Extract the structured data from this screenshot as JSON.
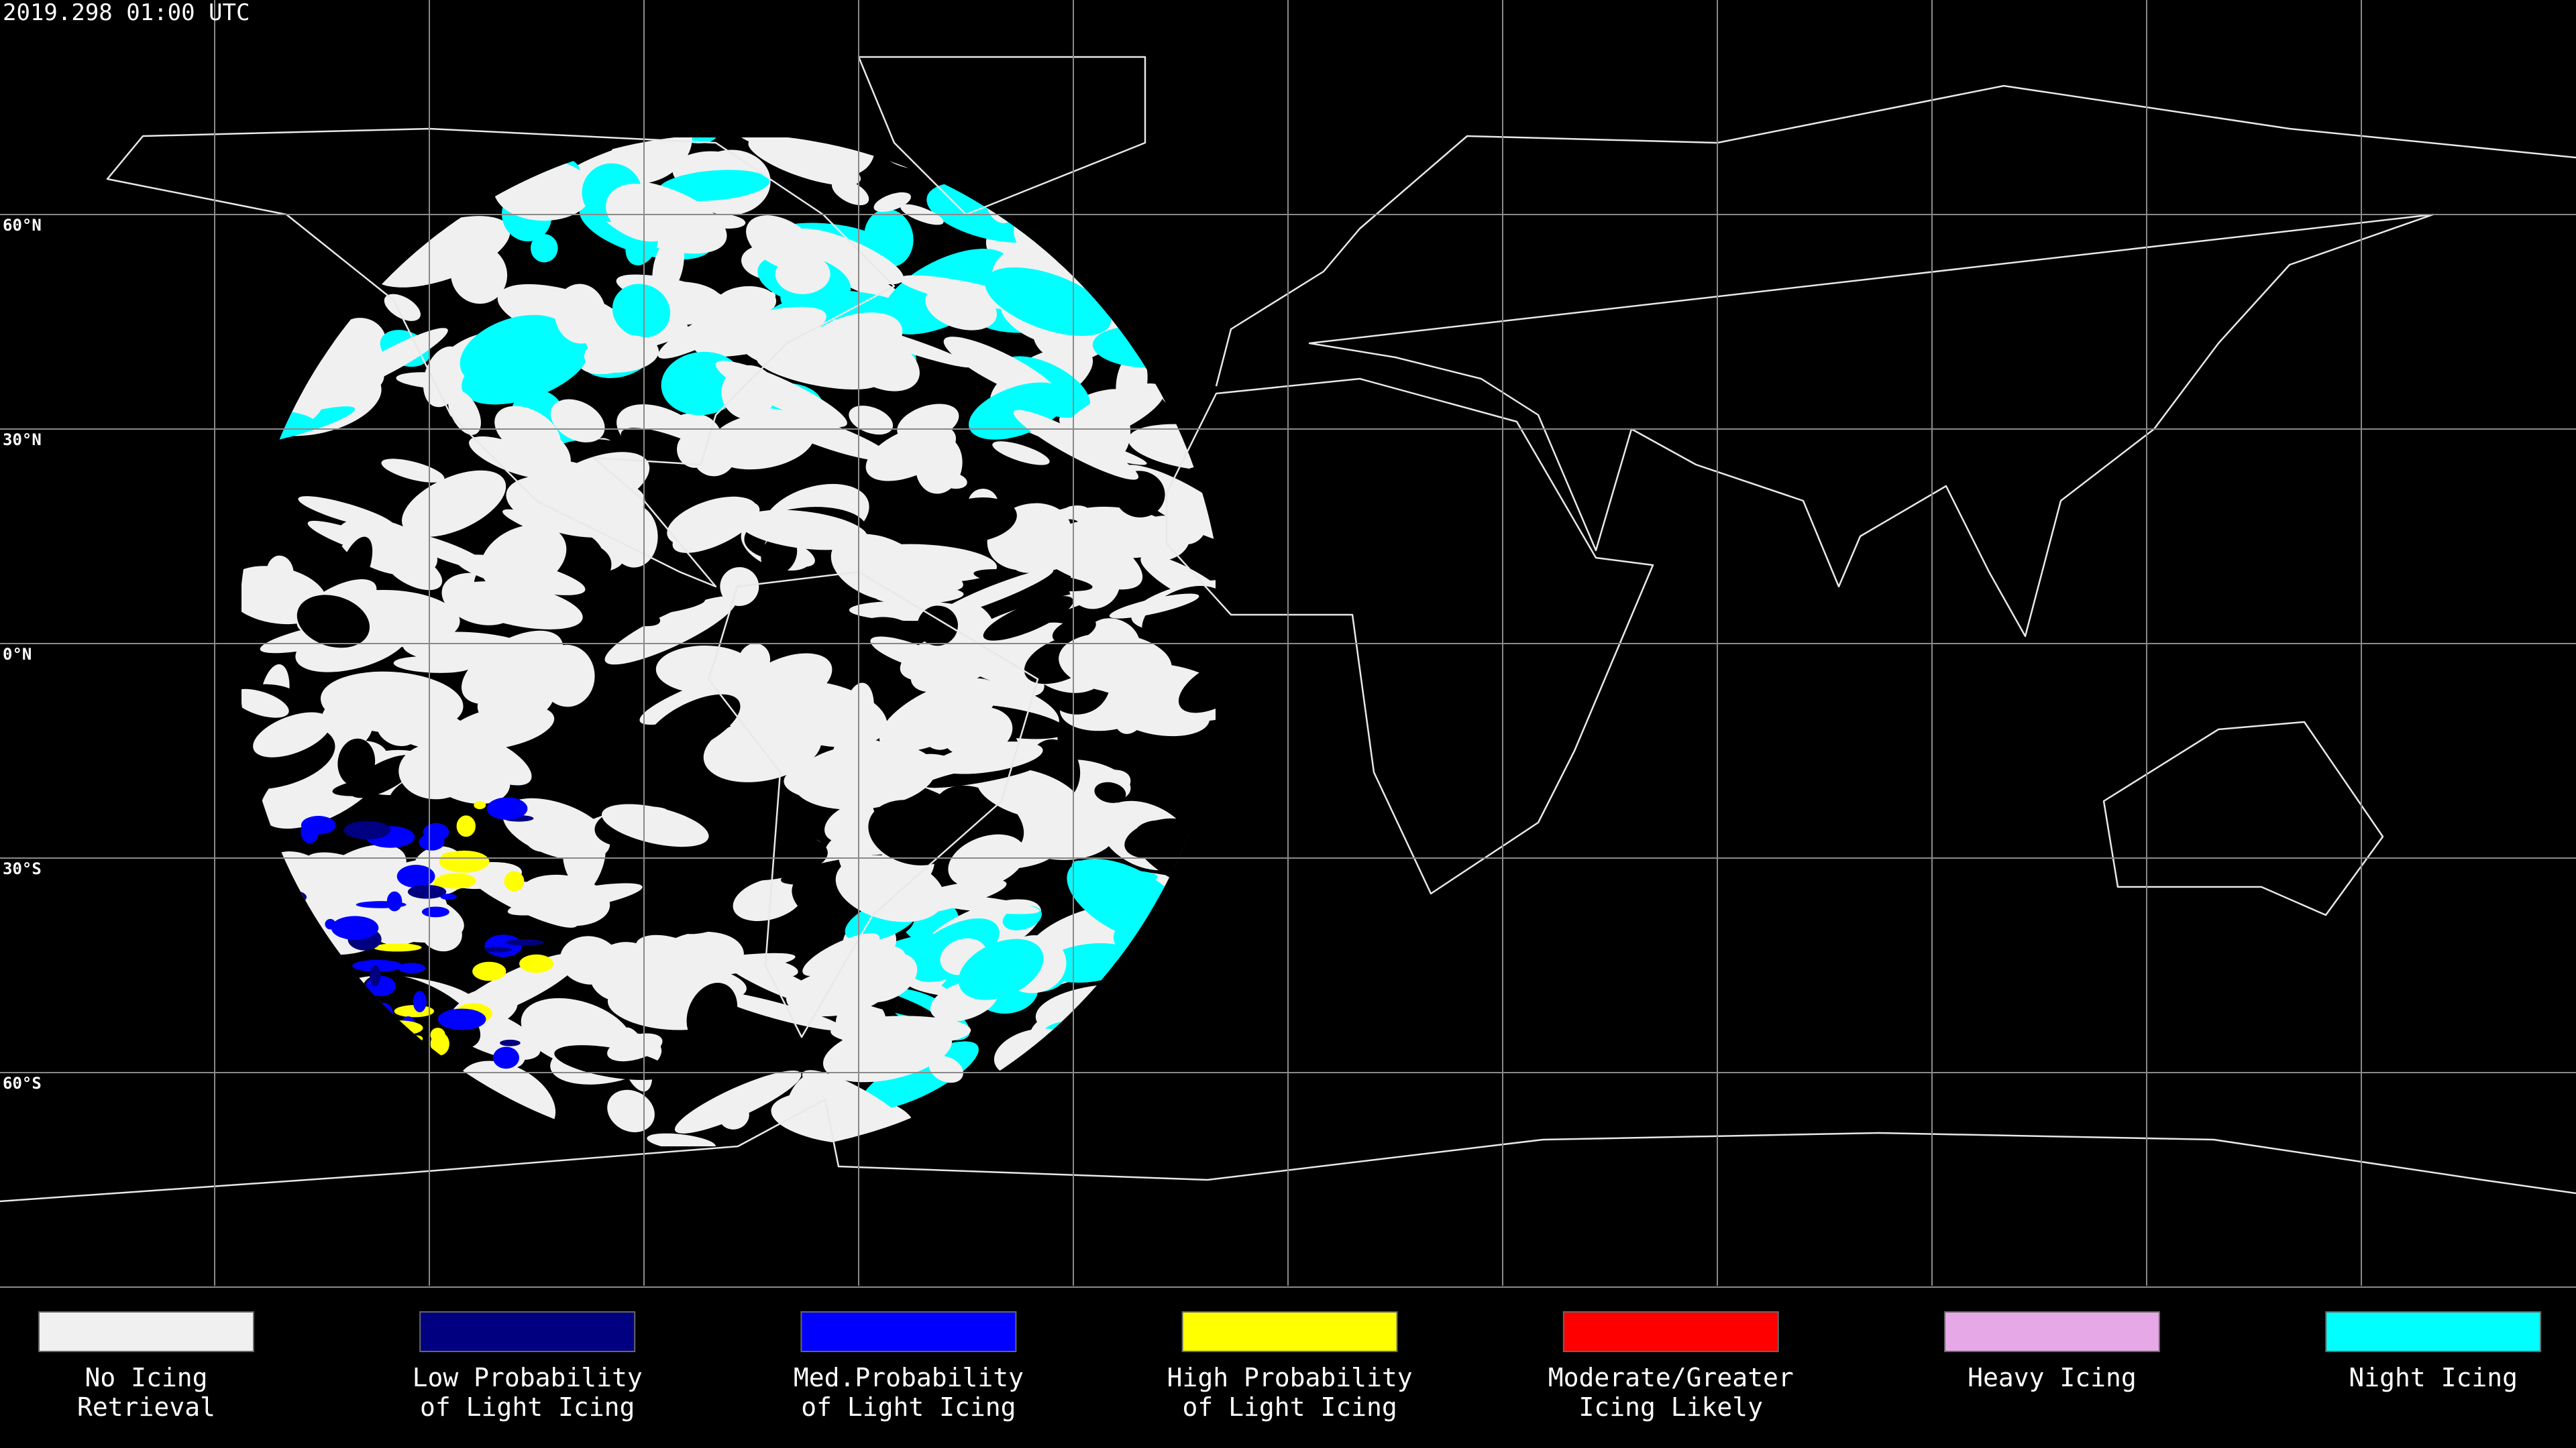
{
  "header": {
    "timestamp": "2019.298 01:00 UTC"
  },
  "map": {
    "latitude_labels": [
      "60°N",
      "30°N",
      "0°N",
      "30°S",
      "60°S"
    ]
  },
  "legend": {
    "items": [
      {
        "label": [
          "No Icing",
          "Retrieval"
        ],
        "color": "#f0f0f0"
      },
      {
        "label": [
          "Low Probability",
          "of Light Icing"
        ],
        "color": "#000080"
      },
      {
        "label": [
          "Med.Probability",
          "of Light Icing"
        ],
        "color": "#0000ff"
      },
      {
        "label": [
          "High Probability",
          "of Light Icing"
        ],
        "color": "#ffff00"
      },
      {
        "label": [
          "Moderate/Greater",
          "Icing Likely"
        ],
        "color": "#ff0000"
      },
      {
        "label": [
          "Heavy Icing"
        ],
        "color": "#e6a8e6"
      },
      {
        "label": [
          "Night Icing"
        ],
        "color": "#00ffff"
      }
    ]
  }
}
